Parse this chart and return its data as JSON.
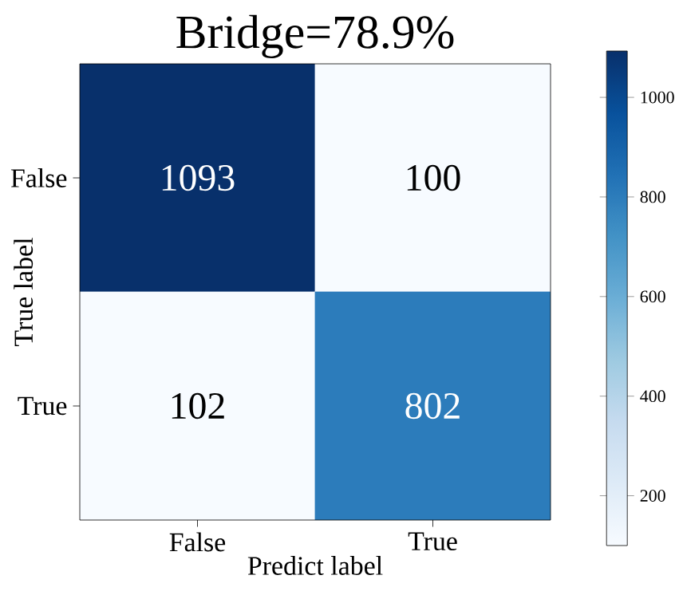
{
  "chart_data": {
    "type": "heatmap",
    "title": "Bridge=78.9%",
    "xlabel": "Predict label",
    "ylabel": "True label",
    "categories": [
      "False",
      "True"
    ],
    "y_categories": [
      "False",
      "True"
    ],
    "cells": [
      [
        1093,
        100
      ],
      [
        102,
        802
      ]
    ],
    "cell_labels": [
      [
        "1093",
        "100"
      ],
      [
        "102",
        "802"
      ]
    ],
    "clim": [
      100,
      1093
    ],
    "cticks": [
      200,
      400,
      600,
      800,
      1000
    ]
  }
}
